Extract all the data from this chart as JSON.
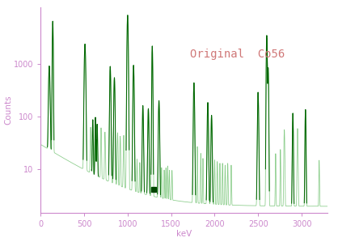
{
  "title": "Original  Co56",
  "title_color": "#d07878",
  "xlabel": "keV",
  "ylabel": "Counts",
  "axis_color": "#cc88cc",
  "background_color": "#ffffff",
  "line_color_dark": "#006600",
  "line_color_light": "#88cc88",
  "marker_color": "#004400",
  "xmin": 0,
  "xmax": 3300,
  "ymin": 1.5,
  "ymax": 12000,
  "figsize": [
    4.18,
    2.99
  ],
  "dpi": 100,
  "xticks": [
    0,
    500,
    1000,
    1500,
    2000,
    2500,
    3000
  ],
  "yticks": [
    10,
    100,
    1000
  ],
  "marker_x": 1295,
  "marker_y": 4.2
}
